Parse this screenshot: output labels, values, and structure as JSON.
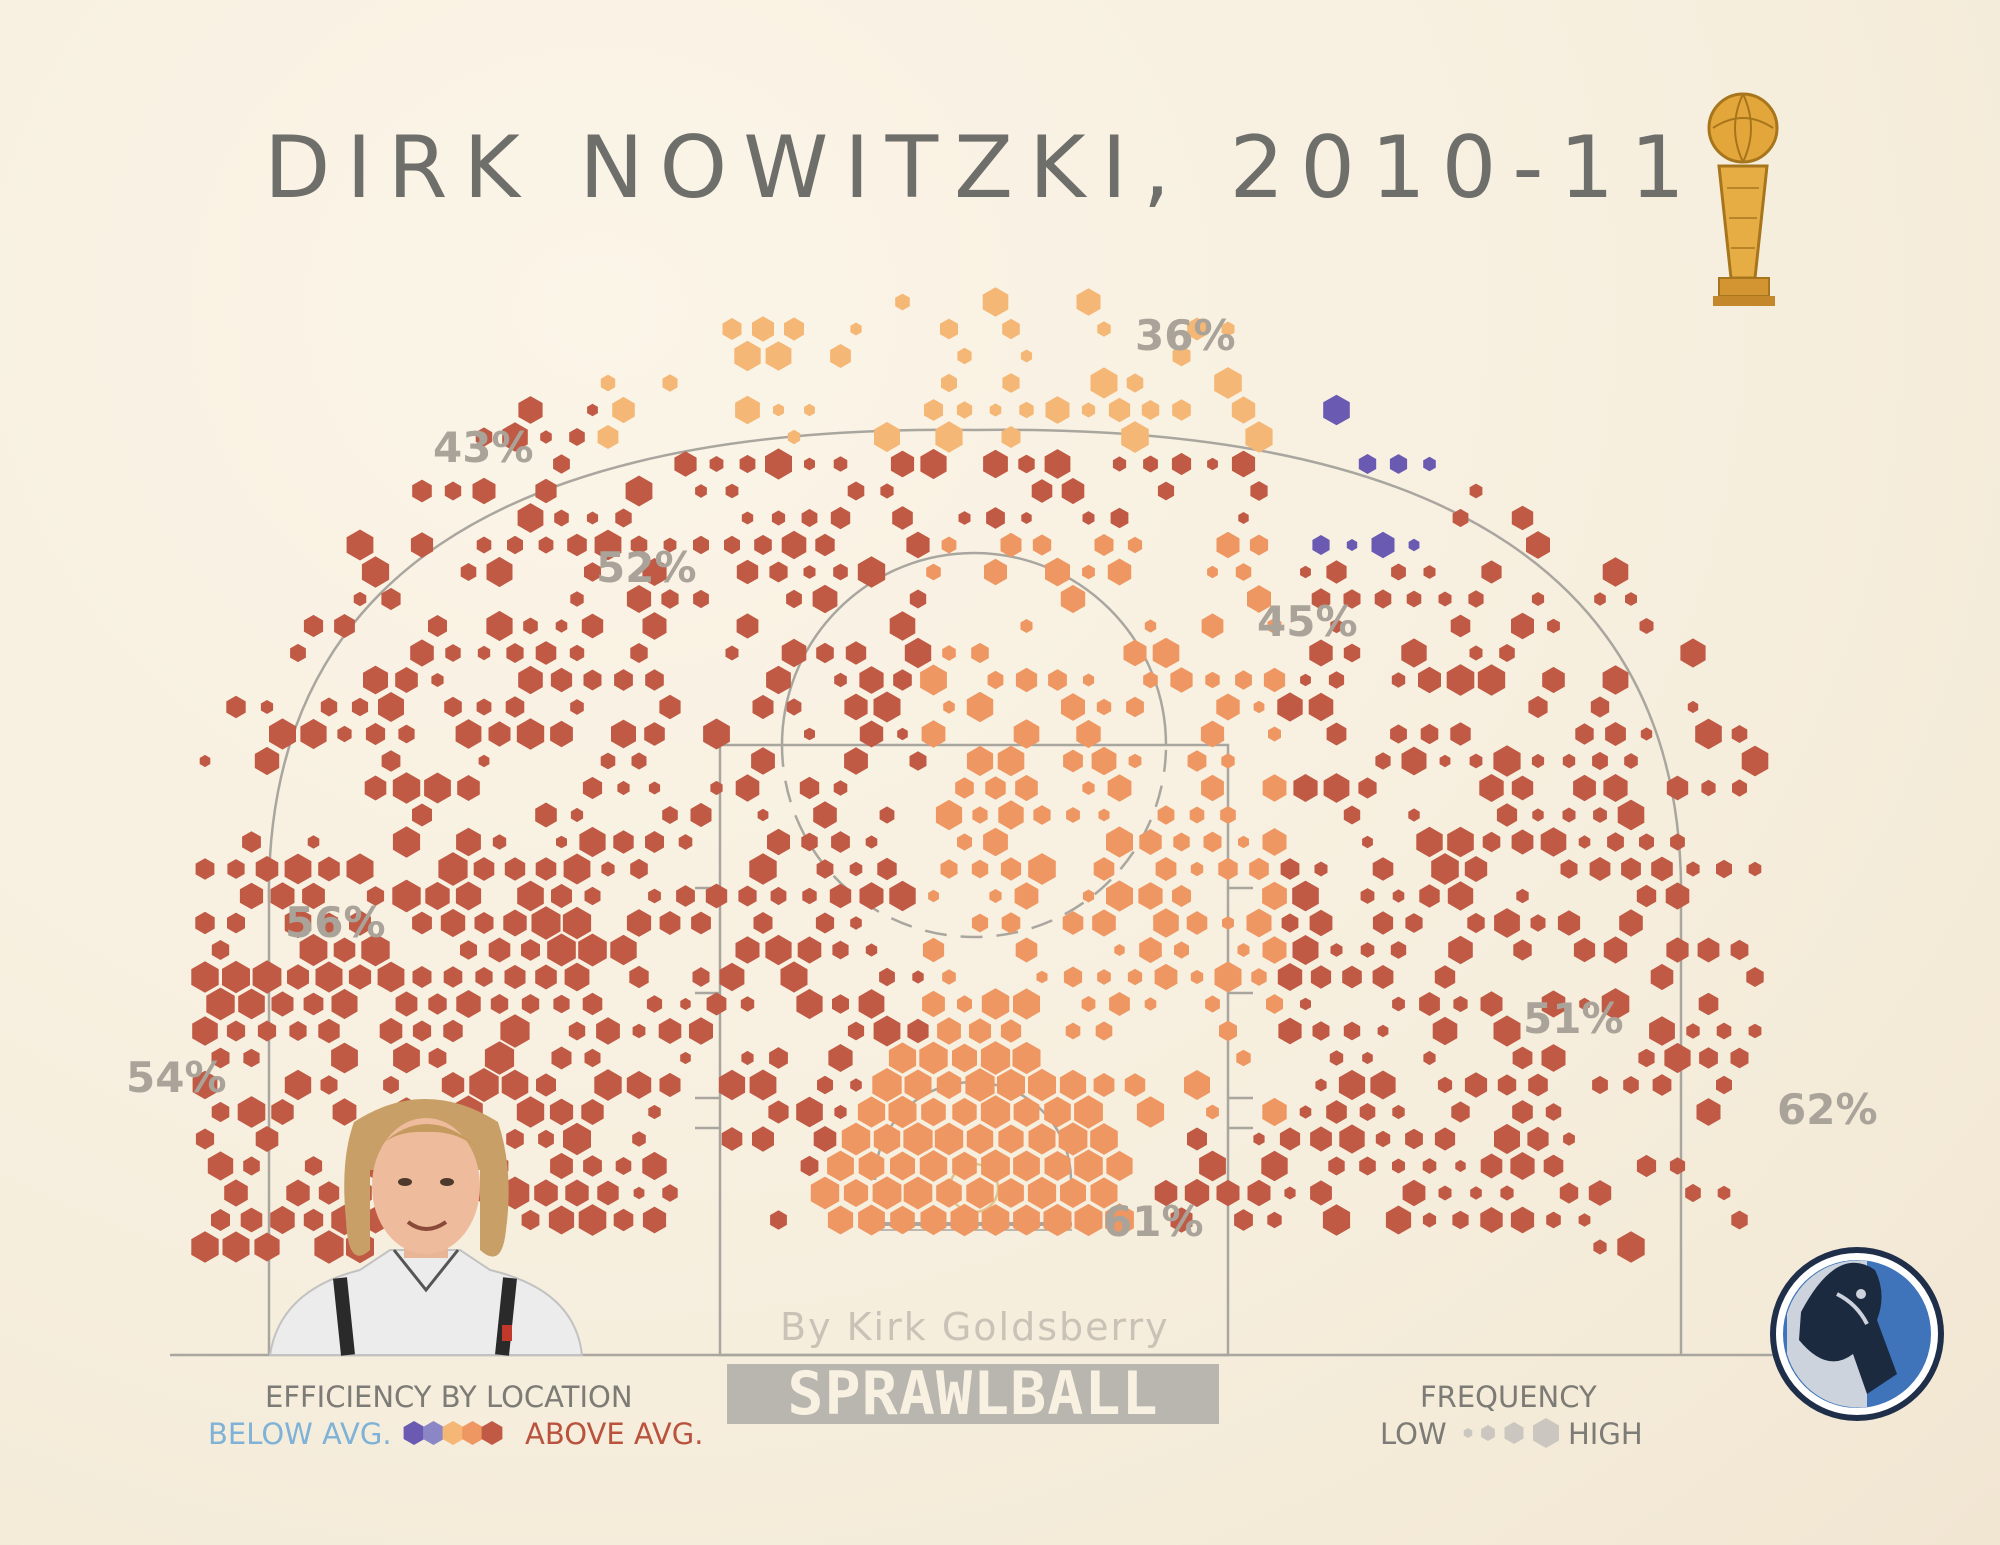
{
  "title": "DIRK NOWITZKI, 2010-11",
  "byline": "By Kirk Goldsberry",
  "brand": "SPRAWLBALL",
  "legend": {
    "efficiency_title": "EFFICIENCY BY LOCATION",
    "below_label": "BELOW AVG.",
    "above_label": "ABOVE AVG.",
    "scale_colors": [
      "#6a5ab2",
      "#8b86c6",
      "#f5b775",
      "#ef9762",
      "#c05a45"
    ],
    "frequency_title": "FREQUENCY",
    "low_label": "LOW",
    "high_label": "HIGH"
  },
  "colors": {
    "background": "#f8f1e2",
    "court_line": "#a9a69f",
    "title": "#6e6e6a",
    "zone_label": "#a9a39a",
    "below_text": "#7fb2d6",
    "above_text": "#b9533e",
    "very_high": "#c05a45",
    "high": "#ef9762",
    "above": "#f5b775",
    "below": "#6a5ab2"
  },
  "icons": [
    "trophy-icon",
    "player-photo",
    "mavericks-logo-icon"
  ],
  "chart_data": {
    "type": "hexbin shot chart",
    "zones": [
      {
        "name": "left corner three",
        "label": "54%"
      },
      {
        "name": "left wing three",
        "label": "43%"
      },
      {
        "name": "top of key three",
        "label": "36%"
      },
      {
        "name": "left elbow midrange",
        "label": "52%"
      },
      {
        "name": "right elbow midrange",
        "label": "45%"
      },
      {
        "name": "left baseline midrange",
        "label": "56%"
      },
      {
        "name": "right baseline midrange",
        "label": "51%"
      },
      {
        "name": "restricted area",
        "label": "61%"
      },
      {
        "name": "right corner three",
        "label": "62%"
      }
    ]
  }
}
